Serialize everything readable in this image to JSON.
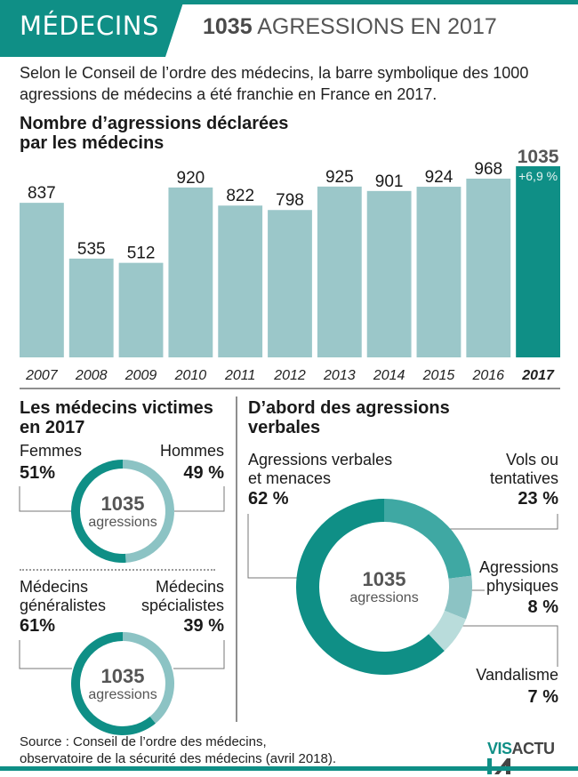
{
  "header": {
    "category": "MÉDECINS",
    "headline_number": "1035",
    "headline_text": "AGRESSIONS EN 2017"
  },
  "intro": "Selon le Conseil de l’ordre des médecins, la barre symbolique des 1000 agressions de médecins a été franchie en France en 2017.",
  "colors": {
    "teal_dark": "#0f8f86",
    "teal_bar": "#9bc7c9",
    "teal_mid": "#3fa8a3",
    "teal_light": "#8cc3c4",
    "teal_pale": "#b9dcdb",
    "gray_text": "#555555"
  },
  "chart_data": [
    {
      "type": "bar",
      "title": "Nombre d’agressions déclarées par les médecins",
      "categories": [
        "2007",
        "2008",
        "2009",
        "2010",
        "2011",
        "2012",
        "2013",
        "2014",
        "2015",
        "2016",
        "2017"
      ],
      "values": [
        837,
        535,
        512,
        920,
        822,
        798,
        925,
        901,
        924,
        968,
        1035
      ],
      "highlight": {
        "category": "2017",
        "value_label": "1035",
        "change_label": "+6,9 %"
      },
      "xlabel": "",
      "ylabel": "",
      "ylim": [
        0,
        1035
      ],
      "grid": false,
      "legend": "none"
    },
    {
      "type": "pie",
      "subtype": "donut",
      "title": "Les médecins victimes en 2017",
      "center_number": "1035",
      "center_label": "agressions",
      "slices": [
        {
          "label": "Femmes",
          "value": 51,
          "pct_label": "51%"
        },
        {
          "label": "Hommes",
          "value": 49,
          "pct_label": "49 %"
        }
      ]
    },
    {
      "type": "pie",
      "subtype": "donut",
      "title": "",
      "center_number": "1035",
      "center_label": "agressions",
      "slices": [
        {
          "label": "Médecins généralistes",
          "label_lines": [
            "Médecins",
            "généralistes"
          ],
          "value": 61,
          "pct_label": "61%"
        },
        {
          "label": "Médecins spécialistes",
          "label_lines": [
            "Médecins",
            "spécialistes"
          ],
          "value": 39,
          "pct_label": "39 %"
        }
      ]
    },
    {
      "type": "pie",
      "subtype": "donut",
      "title": "D’abord des agressions verbales",
      "center_number": "1035",
      "center_label": "agressions",
      "slices": [
        {
          "label": "Vols ou tentatives",
          "label_lines": [
            "Vols ou",
            "tentatives"
          ],
          "value": 23,
          "pct_label": "23 %"
        },
        {
          "label": "Agressions physiques",
          "label_lines": [
            "Agressions",
            "physiques"
          ],
          "value": 8,
          "pct_label": "8 %"
        },
        {
          "label": "Vandalisme",
          "label_lines": [
            "Vandalisme"
          ],
          "value": 7,
          "pct_label": "7 %"
        },
        {
          "label": "Agressions verbales et menaces",
          "label_lines": [
            "Agressions verbales",
            "et menaces"
          ],
          "value": 62,
          "pct_label": "62 %"
        }
      ]
    }
  ],
  "sections": {
    "bar_title_lines": [
      "Nombre d’agressions déclarées",
      "par les médecins"
    ],
    "victims_title_lines": [
      "Les médecins victimes",
      "en 2017"
    ],
    "types_title_lines": [
      "D’abord des agressions",
      "verbales"
    ]
  },
  "footer": {
    "source_lines": [
      "Source : Conseil de l’ordre des médecins,",
      "observatoire de la sécurité des médecins (avril 2018)."
    ],
    "logo_text_a": "VIS",
    "logo_text_b": "ACTU"
  }
}
